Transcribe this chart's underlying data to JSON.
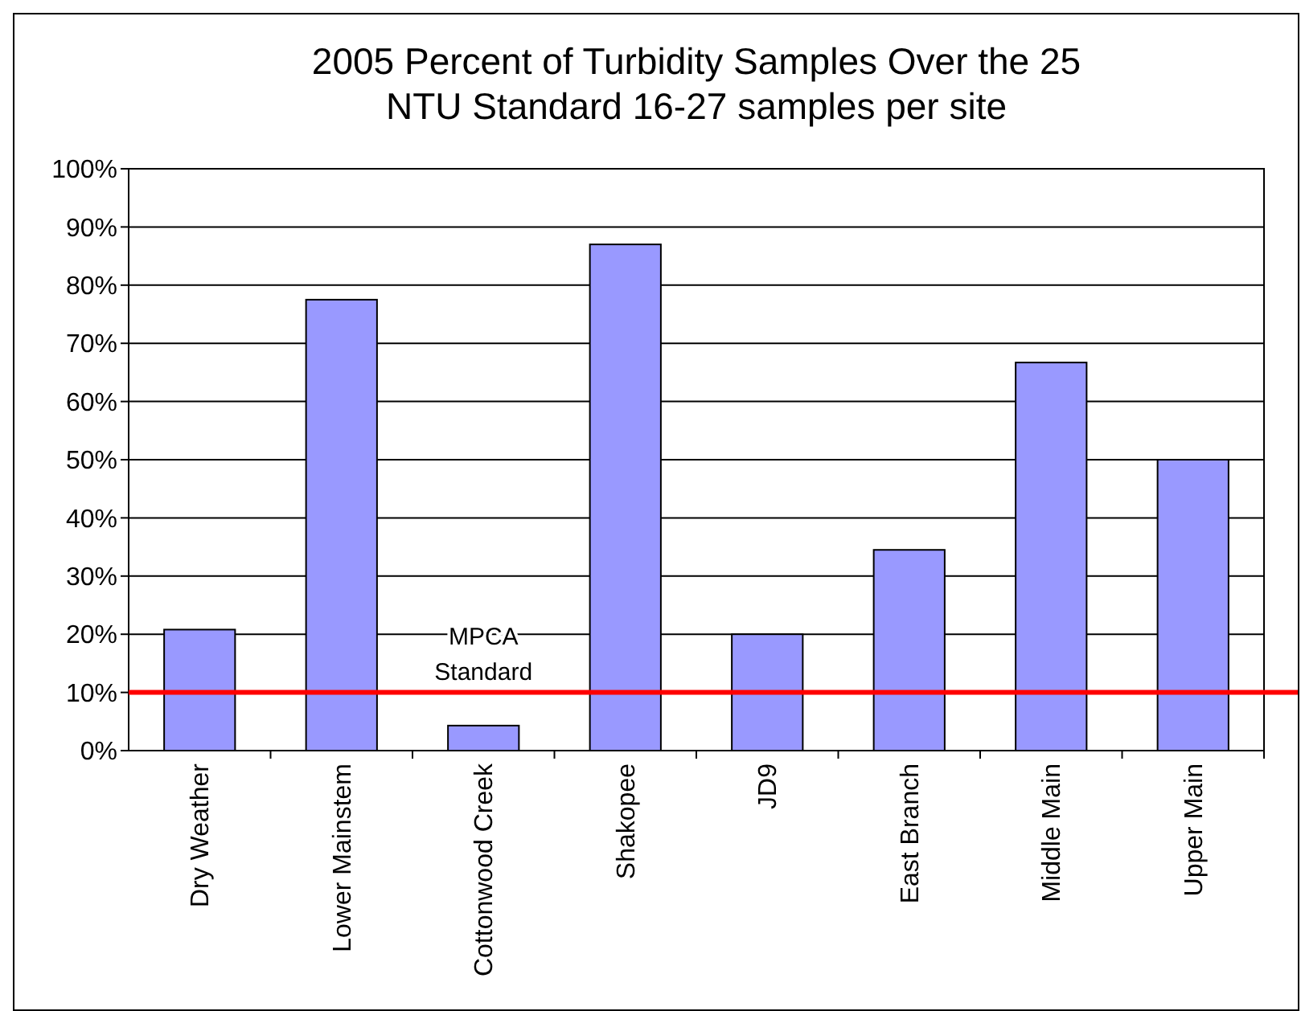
{
  "chart_data": {
    "type": "bar",
    "title": "2005 Percent of Turbidity Samples Over the 25 NTU Standard 16-27 samples per site",
    "categories": [
      "Dry Weather",
      "Lower Mainstem",
      "Cottonwood Creek",
      "Shakopee",
      "JD9",
      "East Branch",
      "Middle Main",
      "Upper Main"
    ],
    "values": [
      20.8,
      77.5,
      4.3,
      87,
      20,
      34.5,
      66.7,
      50
    ],
    "color": "#9999ff",
    "ylim": [
      0,
      100
    ],
    "yticks": [
      {
        "value": 0,
        "label": "0%"
      },
      {
        "value": 10,
        "label": "10%"
      },
      {
        "value": 20,
        "label": "20%"
      },
      {
        "value": 30,
        "label": "30%"
      },
      {
        "value": 40,
        "label": "40%"
      },
      {
        "value": 50,
        "label": "50%"
      },
      {
        "value": 60,
        "label": "60%"
      },
      {
        "value": 70,
        "label": "70%"
      },
      {
        "value": 80,
        "label": "80%"
      },
      {
        "value": 90,
        "label": "90%"
      },
      {
        "value": 100,
        "label": "100%"
      }
    ],
    "grid": "y",
    "ref_lines": [
      {
        "axis": "y",
        "value": 10,
        "label": "MPCA Standard",
        "color": "#ff0000"
      }
    ]
  }
}
